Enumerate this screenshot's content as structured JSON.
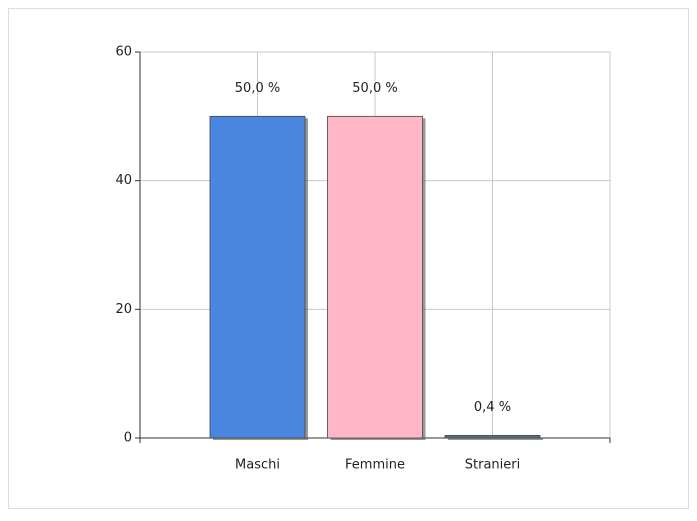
{
  "chart_data": {
    "type": "bar",
    "categories": [
      "Maschi",
      "Femmine",
      "Stranieri"
    ],
    "values": [
      50,
      50,
      0.4
    ],
    "value_labels": [
      "50,0 %",
      "50,0 %",
      "0,4 %"
    ],
    "colors": [
      "#4a86e0",
      "#ffb6c6",
      "#5c6f8a"
    ],
    "ylim": [
      0,
      60
    ],
    "yticks": [
      0,
      20,
      40,
      60
    ],
    "grid": true
  }
}
